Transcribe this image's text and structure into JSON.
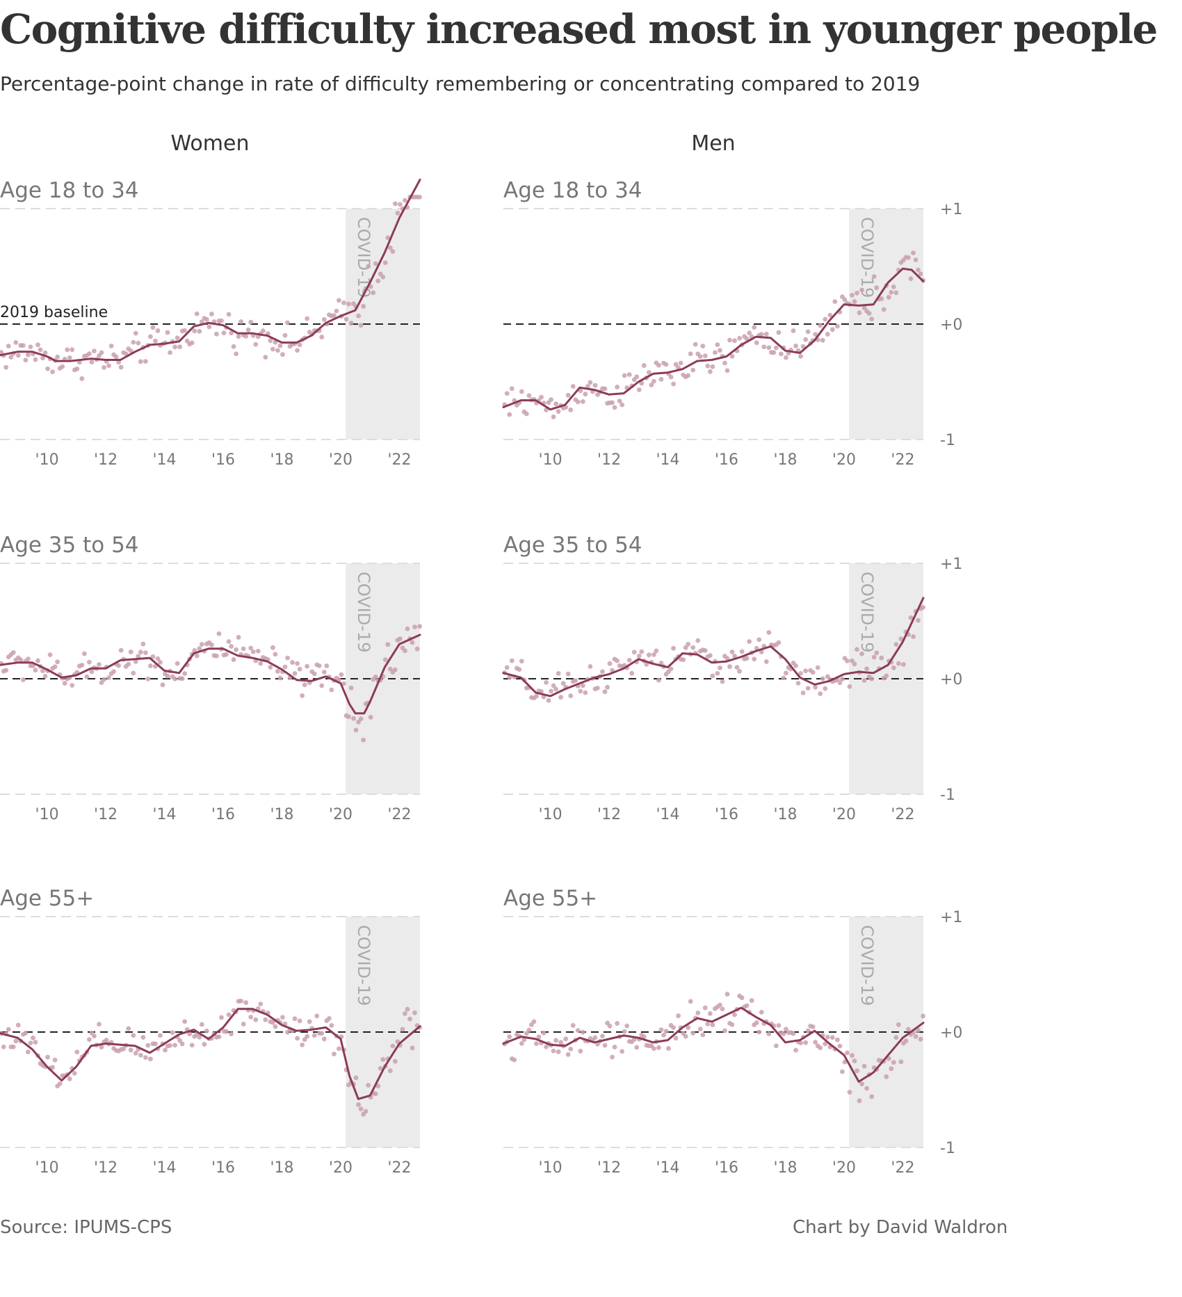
{
  "title": "Cognitive difficulty increased most in younger people",
  "subtitle": "Percentage-point change in rate of difficulty remembering or concentrating compared to 2019",
  "source": "Source: IPUMS-CPS",
  "credit": "Chart by David Waldron",
  "columns": [
    "Women",
    "Men"
  ],
  "rows": [
    "Age 18 to 34",
    "Age 35 to 54",
    "Age 55+"
  ],
  "covid_label": "COVID-19",
  "baseline_label": "2019 baseline",
  "chart_data": {
    "type": "line",
    "x_unit": "year",
    "xlim": [
      2008.4,
      2022.7
    ],
    "ylim": [
      -1,
      1
    ],
    "x_ticks": [
      2010,
      2012,
      2014,
      2016,
      2018,
      2020,
      2022
    ],
    "x_tick_labels": [
      "'10",
      "'12",
      "'14",
      "'16",
      "'18",
      "'20",
      "'22"
    ],
    "y_ticks": [
      -1,
      0,
      1
    ],
    "y_tick_labels": [
      "-1",
      "+0",
      "+1"
    ],
    "grid": false,
    "covid_shading": [
      2020.17,
      2022.7
    ],
    "colors": {
      "line": "#8c3b56",
      "points": "#c9a0b0",
      "shade": "#ebebeb",
      "baseline": "#222222"
    },
    "panels": [
      {
        "row": "Age 18 to 34",
        "column": "Women",
        "trend": [
          [
            2008.4,
            -0.27
          ],
          [
            2009,
            -0.24
          ],
          [
            2009.5,
            -0.24
          ],
          [
            2010,
            -0.28
          ],
          [
            2010.3,
            -0.32
          ],
          [
            2010.8,
            -0.32
          ],
          [
            2011.5,
            -0.3
          ],
          [
            2012,
            -0.31
          ],
          [
            2012.5,
            -0.31
          ],
          [
            2013,
            -0.24
          ],
          [
            2013.5,
            -0.18
          ],
          [
            2014,
            -0.17
          ],
          [
            2014.5,
            -0.15
          ],
          [
            2015,
            -0.02
          ],
          [
            2015.5,
            0.01
          ],
          [
            2016,
            -0.01
          ],
          [
            2016.5,
            -0.08
          ],
          [
            2017,
            -0.08
          ],
          [
            2017.5,
            -0.1
          ],
          [
            2018,
            -0.16
          ],
          [
            2018.5,
            -0.16
          ],
          [
            2019,
            -0.1
          ],
          [
            2019.5,
            0.01
          ],
          [
            2020,
            0.07
          ],
          [
            2020.5,
            0.12
          ],
          [
            2021,
            0.36
          ],
          [
            2021.5,
            0.62
          ],
          [
            2022,
            0.92
          ],
          [
            2022.7,
            1.25
          ]
        ]
      },
      {
        "row": "Age 18 to 34",
        "column": "Men",
        "trend": [
          [
            2008.4,
            -0.72
          ],
          [
            2009,
            -0.66
          ],
          [
            2009.5,
            -0.66
          ],
          [
            2010,
            -0.74
          ],
          [
            2010.5,
            -0.7
          ],
          [
            2011,
            -0.55
          ],
          [
            2011.5,
            -0.57
          ],
          [
            2012,
            -0.61
          ],
          [
            2012.5,
            -0.6
          ],
          [
            2013,
            -0.5
          ],
          [
            2013.5,
            -0.43
          ],
          [
            2014,
            -0.42
          ],
          [
            2014.5,
            -0.39
          ],
          [
            2015,
            -0.32
          ],
          [
            2015.5,
            -0.31
          ],
          [
            2016,
            -0.28
          ],
          [
            2016.5,
            -0.18
          ],
          [
            2017,
            -0.11
          ],
          [
            2017.5,
            -0.12
          ],
          [
            2018,
            -0.23
          ],
          [
            2018.5,
            -0.25
          ],
          [
            2019,
            -0.14
          ],
          [
            2019.5,
            0.03
          ],
          [
            2020,
            0.17
          ],
          [
            2020.5,
            0.16
          ],
          [
            2021,
            0.17
          ],
          [
            2021.5,
            0.36
          ],
          [
            2022,
            0.48
          ],
          [
            2022.3,
            0.47
          ],
          [
            2022.7,
            0.37
          ]
        ]
      },
      {
        "row": "Age 35 to 54",
        "column": "Women",
        "trend": [
          [
            2008.4,
            0.12
          ],
          [
            2009,
            0.14
          ],
          [
            2009.5,
            0.14
          ],
          [
            2010,
            0.08
          ],
          [
            2010.5,
            0.01
          ],
          [
            2011,
            0.03
          ],
          [
            2011.5,
            0.09
          ],
          [
            2012,
            0.09
          ],
          [
            2012.5,
            0.16
          ],
          [
            2013,
            0.17
          ],
          [
            2013.5,
            0.18
          ],
          [
            2014,
            0.07
          ],
          [
            2014.5,
            0.05
          ],
          [
            2015,
            0.22
          ],
          [
            2015.5,
            0.26
          ],
          [
            2016,
            0.26
          ],
          [
            2016.5,
            0.2
          ],
          [
            2017,
            0.18
          ],
          [
            2017.5,
            0.15
          ],
          [
            2018,
            0.08
          ],
          [
            2018.5,
            -0.01
          ],
          [
            2019,
            -0.02
          ],
          [
            2019.5,
            0.02
          ],
          [
            2020,
            -0.04
          ],
          [
            2020.3,
            -0.22
          ],
          [
            2020.5,
            -0.3
          ],
          [
            2020.8,
            -0.3
          ],
          [
            2021,
            -0.2
          ],
          [
            2021.5,
            0.1
          ],
          [
            2022,
            0.3
          ],
          [
            2022.7,
            0.38
          ]
        ]
      },
      {
        "row": "Age 35 to 54",
        "column": "Men",
        "trend": [
          [
            2008.4,
            0.05
          ],
          [
            2009,
            0.01
          ],
          [
            2009.5,
            -0.12
          ],
          [
            2010,
            -0.15
          ],
          [
            2010.5,
            -0.09
          ],
          [
            2011,
            -0.04
          ],
          [
            2011.5,
            0.01
          ],
          [
            2012,
            0.04
          ],
          [
            2012.5,
            0.09
          ],
          [
            2013,
            0.17
          ],
          [
            2013.5,
            0.13
          ],
          [
            2014,
            0.1
          ],
          [
            2014.5,
            0.22
          ],
          [
            2015,
            0.21
          ],
          [
            2015.5,
            0.14
          ],
          [
            2016,
            0.15
          ],
          [
            2016.5,
            0.19
          ],
          [
            2017,
            0.24
          ],
          [
            2017.5,
            0.28
          ],
          [
            2018,
            0.17
          ],
          [
            2018.5,
            0.01
          ],
          [
            2019,
            -0.05
          ],
          [
            2019.5,
            -0.02
          ],
          [
            2020,
            0.04
          ],
          [
            2020.5,
            0.06
          ],
          [
            2021,
            0.05
          ],
          [
            2021.5,
            0.12
          ],
          [
            2022,
            0.32
          ],
          [
            2022.7,
            0.7
          ]
        ]
      },
      {
        "row": "Age 55+",
        "column": "Women",
        "trend": [
          [
            2008.4,
            -0.01
          ],
          [
            2009,
            -0.05
          ],
          [
            2009.5,
            -0.15
          ],
          [
            2010,
            -0.3
          ],
          [
            2010.5,
            -0.42
          ],
          [
            2011,
            -0.3
          ],
          [
            2011.5,
            -0.12
          ],
          [
            2012,
            -0.1
          ],
          [
            2012.5,
            -0.11
          ],
          [
            2013,
            -0.12
          ],
          [
            2013.5,
            -0.18
          ],
          [
            2014,
            -0.1
          ],
          [
            2014.5,
            -0.02
          ],
          [
            2015,
            0.02
          ],
          [
            2015.5,
            -0.06
          ],
          [
            2016,
            0.04
          ],
          [
            2016.5,
            0.2
          ],
          [
            2017,
            0.2
          ],
          [
            2017.5,
            0.15
          ],
          [
            2018,
            0.06
          ],
          [
            2018.5,
            0.01
          ],
          [
            2019,
            0.02
          ],
          [
            2019.5,
            0.04
          ],
          [
            2020,
            -0.06
          ],
          [
            2020.3,
            -0.38
          ],
          [
            2020.6,
            -0.58
          ],
          [
            2021,
            -0.55
          ],
          [
            2021.5,
            -0.3
          ],
          [
            2022,
            -0.1
          ],
          [
            2022.7,
            0.05
          ]
        ]
      },
      {
        "row": "Age 55+",
        "column": "Men",
        "trend": [
          [
            2008.4,
            -0.1
          ],
          [
            2009,
            -0.04
          ],
          [
            2009.5,
            -0.06
          ],
          [
            2010,
            -0.11
          ],
          [
            2010.5,
            -0.12
          ],
          [
            2011,
            -0.05
          ],
          [
            2011.5,
            -0.09
          ],
          [
            2012,
            -0.06
          ],
          [
            2012.5,
            -0.03
          ],
          [
            2013,
            -0.05
          ],
          [
            2013.5,
            -0.09
          ],
          [
            2014,
            -0.07
          ],
          [
            2014.5,
            0.04
          ],
          [
            2015,
            0.12
          ],
          [
            2015.5,
            0.09
          ],
          [
            2016,
            0.15
          ],
          [
            2016.5,
            0.21
          ],
          [
            2017,
            0.13
          ],
          [
            2017.5,
            0.06
          ],
          [
            2018,
            -0.09
          ],
          [
            2018.5,
            -0.07
          ],
          [
            2019,
            0.01
          ],
          [
            2019.5,
            -0.1
          ],
          [
            2020,
            -0.2
          ],
          [
            2020.5,
            -0.43
          ],
          [
            2021,
            -0.35
          ],
          [
            2021.5,
            -0.2
          ],
          [
            2022,
            -0.05
          ],
          [
            2022.7,
            0.08
          ]
        ]
      }
    ]
  }
}
